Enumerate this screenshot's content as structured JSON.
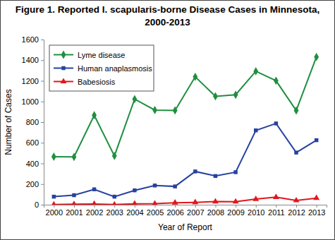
{
  "chart_data": {
    "type": "line",
    "title": [
      "Figure 1. Reported I. scapularis-borne Disease Cases in Minnesota,",
      "2000-2013"
    ],
    "x_label": "Year of Report",
    "y_label": "Number of Cases",
    "categories": [
      "2000",
      "2001",
      "2002",
      "2003",
      "2004",
      "2005",
      "2006",
      "2007",
      "2008",
      "2009",
      "2010",
      "2011",
      "2012",
      "2013"
    ],
    "series": [
      {
        "name": "Lyme disease",
        "color": "#1f8f3f",
        "marker": "diamond",
        "values": [
          465,
          463,
          867,
          473,
          1023,
          917,
          913,
          1239,
          1050,
          1065,
          1293,
          1201,
          912,
          1431
        ]
      },
      {
        "name": "Human anaplasmosis",
        "color": "#2642a0",
        "marker": "square",
        "values": [
          78,
          92,
          149,
          78,
          139,
          186,
          177,
          322,
          278,
          315,
          720,
          787,
          505,
          625
        ]
      },
      {
        "name": "Babesiosis",
        "color": "#e3161b",
        "marker": "triangle",
        "values": [
          1,
          5,
          7,
          1,
          9,
          10,
          19,
          23,
          30,
          29,
          54,
          73,
          41,
          64
        ]
      }
    ],
    "ylim": [
      0,
      1600
    ],
    "yticks": [
      0,
      200,
      400,
      600,
      800,
      1000,
      1200,
      1400,
      1600
    ],
    "grid": false,
    "legend": "top-left"
  }
}
